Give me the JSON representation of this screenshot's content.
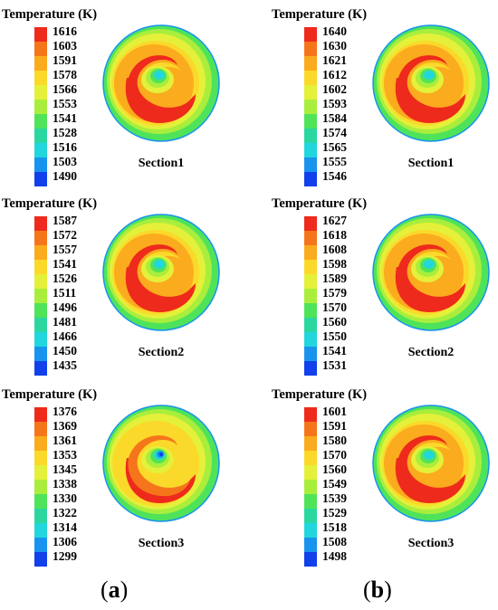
{
  "legend_title": "Temperature (K)",
  "columns": [
    {
      "caption_open": "(",
      "caption_letter": "a",
      "caption_close": ")",
      "panels": [
        {
          "section": "Section1",
          "ticks": [
            "1616",
            "1603",
            "1591",
            "1578",
            "1566",
            "1553",
            "1541",
            "1528",
            "1516",
            "1503",
            "1490"
          ]
        },
        {
          "section": "Section2",
          "ticks": [
            "1587",
            "1572",
            "1557",
            "1541",
            "1526",
            "1511",
            "1496",
            "1481",
            "1466",
            "1450",
            "1435"
          ]
        },
        {
          "section": "Section3",
          "ticks": [
            "1376",
            "1369",
            "1361",
            "1353",
            "1345",
            "1338",
            "1330",
            "1322",
            "1314",
            "1306",
            "1299"
          ]
        }
      ]
    },
    {
      "caption_open": "(",
      "caption_letter": "b",
      "caption_close": ")",
      "panels": [
        {
          "section": "Section1",
          "ticks": [
            "1640",
            "1630",
            "1621",
            "1612",
            "1602",
            "1593",
            "1584",
            "1574",
            "1565",
            "1555",
            "1546"
          ]
        },
        {
          "section": "Section2",
          "ticks": [
            "1627",
            "1618",
            "1608",
            "1598",
            "1589",
            "1579",
            "1570",
            "1560",
            "1550",
            "1541",
            "1531"
          ]
        },
        {
          "section": "Section3",
          "ticks": [
            "1601",
            "1591",
            "1580",
            "1570",
            "1560",
            "1549",
            "1539",
            "1529",
            "1518",
            "1508",
            "1498"
          ]
        }
      ]
    }
  ],
  "colormap": [
    "#ee2a1c",
    "#f5761a",
    "#fbab1e",
    "#fbd92a",
    "#e4f03a",
    "#a9ee3c",
    "#4fe35a",
    "#2bd7a0",
    "#22d6de",
    "#1894ee",
    "#1240ea"
  ]
}
